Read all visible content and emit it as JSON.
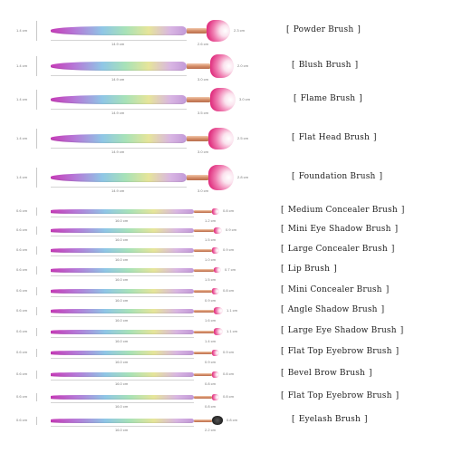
{
  "brushes": [
    {
      "name": "Powder Brush",
      "height": "1.4 cm",
      "handle": "14.9 cm",
      "ferrule": "2.6 cm",
      "width": "2.3 cm"
    },
    {
      "name": "Blush Brush",
      "height": "1.4 cm",
      "handle": "14.9 cm",
      "ferrule": "3.0 cm",
      "width": "2.0 cm"
    },
    {
      "name": "Flame Brush",
      "height": "1.4 cm",
      "handle": "14.9 cm",
      "ferrule": "3.5 cm",
      "width": "3.0 cm"
    },
    {
      "name": "Flat Head Brush",
      "height": "1.4 cm",
      "handle": "14.9 cm",
      "ferrule": "3.0 cm",
      "width": "2.5 cm"
    },
    {
      "name": "Foundation Brush",
      "height": "1.4 cm",
      "handle": "14.9 cm",
      "ferrule": "3.0 cm",
      "width": "2.8 cm"
    },
    {
      "name": "Medium Concealer Brush",
      "height": "0.6 cm",
      "handle": "16.0 cm",
      "ferrule": "1.2 cm",
      "width": "0.8 cm"
    },
    {
      "name": "Mini Eye Shadow Brush",
      "height": "0.6 cm",
      "handle": "16.0 cm",
      "ferrule": "1.5 cm",
      "width": "0.9 cm"
    },
    {
      "name": "Large Concealer Brush",
      "height": "0.6 cm",
      "handle": "16.0 cm",
      "ferrule": "1.0 cm",
      "width": "0.9 cm"
    },
    {
      "name": "Lip Brush",
      "height": "0.6 cm",
      "handle": "16.0 cm",
      "ferrule": "1.5 cm",
      "width": "0.7 cm"
    },
    {
      "name": "Mini Concealer Brush",
      "height": "0.6 cm",
      "handle": "16.0 cm",
      "ferrule": "0.9 cm",
      "width": "0.8 cm"
    },
    {
      "name": "Angle Shadow Brush",
      "height": "0.6 cm",
      "handle": "16.0 cm",
      "ferrule": "1.6 cm",
      "width": "1.1 cm"
    },
    {
      "name": "Large Eye Shadow Brush",
      "height": "0.6 cm",
      "handle": "16.0 cm",
      "ferrule": "1.4 cm",
      "width": "1.1 cm"
    },
    {
      "name": "Flat Top Eyebrow Brush",
      "height": "0.6 cm",
      "handle": "16.0 cm",
      "ferrule": "0.9 cm",
      "width": "0.9 cm"
    },
    {
      "name": "Bevel Brow Brush",
      "height": "0.6 cm",
      "handle": "16.0 cm",
      "ferrule": "0.8 cm",
      "width": "0.8 cm"
    },
    {
      "name": "Flat Top Eyebrow Brush",
      "height": "0.6 cm",
      "handle": "16.0 cm",
      "ferrule": "0.8 cm",
      "width": "0.8 cm"
    },
    {
      "name": "Eyelash Brush",
      "height": "0.6 cm",
      "handle": "16.0 cm",
      "ferrule": "2.2 cm",
      "width": "0.8 cm"
    }
  ],
  "colors": {
    "bristle_pink": "#e0307f",
    "ferrule_gold": "#d58e69",
    "handle_gradient": [
      "#c63bb7",
      "#8fc6e6",
      "#a8e2b8",
      "#e6e59a"
    ]
  }
}
